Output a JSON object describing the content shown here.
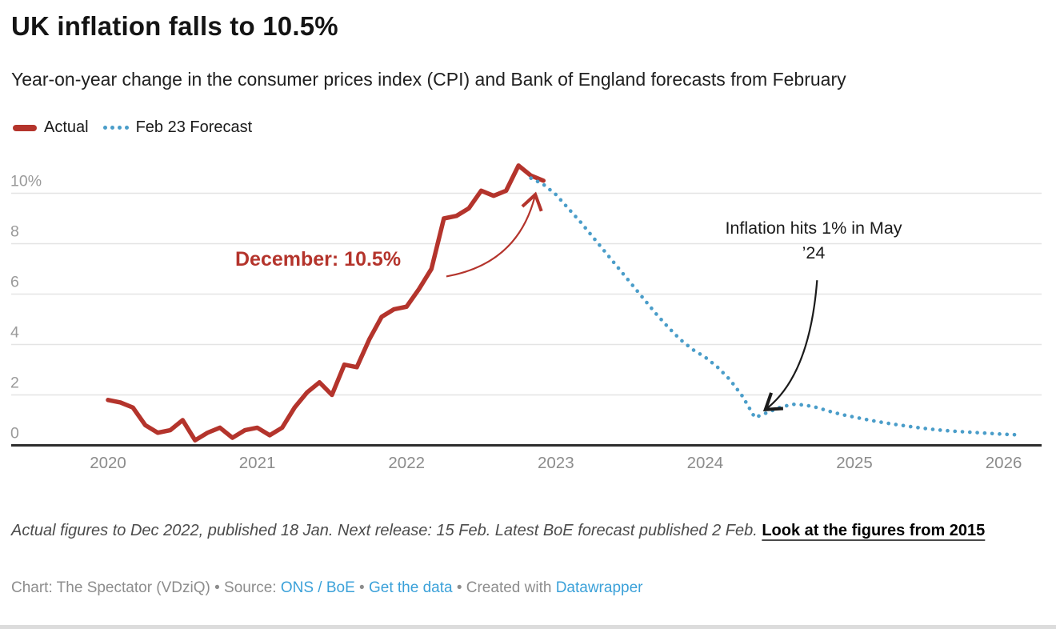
{
  "header": {
    "title": "UK inflation falls to 10.5%",
    "subtitle": "Year-on-year change in the consumer prices index (CPI) and Bank of England forecasts from February"
  },
  "legend": {
    "actual_label": "Actual",
    "forecast_label": "Feb 23 Forecast"
  },
  "chart_data": {
    "type": "line",
    "title": "UK inflation falls to 10.5%",
    "unit": "%",
    "x_axis": {
      "ticks": [
        2020,
        2021,
        2022,
        2023,
        2024,
        2025,
        2026
      ],
      "range_months": [
        -6,
        75
      ]
    },
    "y_axis": {
      "ticks": [
        0,
        2,
        4,
        6,
        8,
        10
      ],
      "top_label": "10%",
      "range": [
        0,
        11.8
      ],
      "grid": true
    },
    "series": [
      {
        "name": "Actual",
        "color": "#b4342c",
        "style": "solid",
        "start": "2020-01",
        "interval": "monthly",
        "values": [
          1.8,
          1.7,
          1.5,
          0.8,
          0.5,
          0.6,
          1.0,
          0.2,
          0.5,
          0.7,
          0.3,
          0.6,
          0.7,
          0.4,
          0.7,
          1.5,
          2.1,
          2.5,
          2.0,
          3.2,
          3.1,
          4.2,
          5.1,
          5.4,
          5.5,
          6.2,
          7.0,
          9.0,
          9.1,
          9.4,
          10.1,
          9.9,
          10.1,
          11.1,
          10.7,
          10.5
        ]
      },
      {
        "name": "Feb 23 Forecast",
        "color": "#4a9dc9",
        "style": "dotted",
        "points_note": "pairs of [months since Jan 2020, value %]",
        "points": [
          [
            34,
            10.6
          ],
          [
            35,
            10.35
          ],
          [
            36,
            9.95
          ],
          [
            37,
            9.4
          ],
          [
            38,
            8.85
          ],
          [
            39,
            8.25
          ],
          [
            40,
            7.65
          ],
          [
            41,
            7.05
          ],
          [
            42,
            6.45
          ],
          [
            43,
            5.85
          ],
          [
            44,
            5.25
          ],
          [
            45,
            4.7
          ],
          [
            46,
            4.2
          ],
          [
            47,
            3.8
          ],
          [
            48,
            3.5
          ],
          [
            49,
            3.1
          ],
          [
            50,
            2.6
          ],
          [
            51,
            1.95
          ],
          [
            52,
            1.1
          ],
          [
            53,
            1.3
          ],
          [
            54,
            1.5
          ],
          [
            55,
            1.63
          ],
          [
            56,
            1.6
          ],
          [
            57,
            1.5
          ],
          [
            58,
            1.35
          ],
          [
            59,
            1.22
          ],
          [
            60,
            1.12
          ],
          [
            61,
            1.02
          ],
          [
            62,
            0.93
          ],
          [
            63,
            0.85
          ],
          [
            64,
            0.78
          ],
          [
            65,
            0.71
          ],
          [
            66,
            0.65
          ],
          [
            67,
            0.6
          ],
          [
            68,
            0.56
          ],
          [
            69,
            0.53
          ],
          [
            70,
            0.5
          ],
          [
            71,
            0.47
          ],
          [
            72,
            0.44
          ],
          [
            73,
            0.42
          ]
        ]
      }
    ],
    "annotations": [
      {
        "id": "december",
        "text": "December: 10.5%",
        "color": "#b4342c",
        "marker": "arrow-red",
        "arrow": {
          "from": [
            27.2,
            6.7
          ],
          "ctrl": [
            33.0,
            7.2
          ],
          "to": [
            34.35,
            9.95
          ]
        }
      },
      {
        "id": "may24",
        "lines": [
          "Inflation hits 1% in May",
          "’24"
        ],
        "color": "#1b1b1b",
        "marker": "arrow-black",
        "arrow": {
          "from": [
            57.0,
            6.55
          ],
          "ctrl": [
            56.4,
            2.75
          ],
          "to": [
            52.85,
            1.42
          ]
        }
      }
    ],
    "legend_position": "top-left"
  },
  "notes": {
    "text": "Actual figures to Dec 2022, published 18 Jan. Next release: 15 Feb. Latest BoE forecast published 2 Feb. ",
    "link_label": "Look at the figures from 2015"
  },
  "byline": {
    "prefix": "Chart: The Spectator (VDziQ) • Source: ",
    "source_link": "ONS / BoE",
    "sep": " • ",
    "data_link": "Get the data",
    "created": " • Created with ",
    "tool_link": "Datawrapper"
  }
}
